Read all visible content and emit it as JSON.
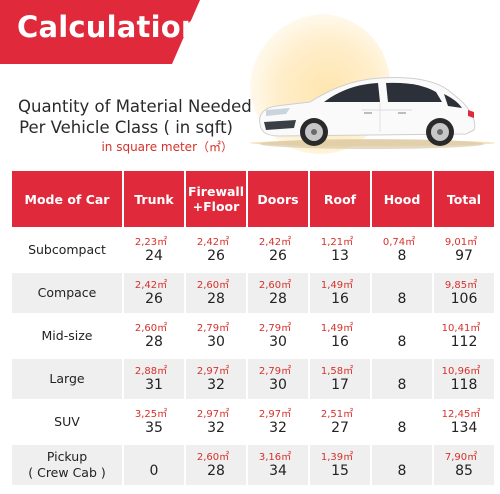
{
  "banner": {
    "title": "Calculation"
  },
  "heading": {
    "line1": "Quantity of Material Needed",
    "line2": "Per Vehicle Class ( in sqft)",
    "subtitle": "in square meter（㎡）"
  },
  "colors": {
    "accent": "#e0293b",
    "metric_text": "#d6312b",
    "row_shade": "#efefef"
  },
  "table": {
    "headers": [
      "Mode of Car",
      "Trunk",
      "Firewall\n+Floor",
      "Doors",
      "Roof",
      "Hood",
      "Total"
    ],
    "rows": [
      {
        "label": "Subcompact",
        "cells": [
          {
            "m2": "2,23㎡",
            "sqft": "24"
          },
          {
            "m2": "2,42㎡",
            "sqft": "26"
          },
          {
            "m2": "2,42㎡",
            "sqft": "26"
          },
          {
            "m2": "1,21㎡",
            "sqft": "13"
          },
          {
            "m2": "0,74㎡",
            "sqft": "8"
          },
          {
            "m2": "9,01㎡",
            "sqft": "97"
          }
        ]
      },
      {
        "label": "Compace",
        "cells": [
          {
            "m2": "2,42㎡",
            "sqft": "26"
          },
          {
            "m2": "2,60㎡",
            "sqft": "28"
          },
          {
            "m2": "2,60㎡",
            "sqft": "28"
          },
          {
            "m2": "1,49㎡",
            "sqft": "16"
          },
          {
            "m2": "",
            "sqft": "8"
          },
          {
            "m2": "9,85㎡",
            "sqft": "106"
          }
        ]
      },
      {
        "label": "Mid-size",
        "cells": [
          {
            "m2": "2,60㎡",
            "sqft": "28"
          },
          {
            "m2": "2,79㎡",
            "sqft": "30"
          },
          {
            "m2": "2,79㎡",
            "sqft": "30"
          },
          {
            "m2": "1,49㎡",
            "sqft": "16"
          },
          {
            "m2": "",
            "sqft": "8"
          },
          {
            "m2": "10,41㎡",
            "sqft": "112"
          }
        ]
      },
      {
        "label": "Large",
        "cells": [
          {
            "m2": "2,88㎡",
            "sqft": "31"
          },
          {
            "m2": "2,97㎡",
            "sqft": "32"
          },
          {
            "m2": "2,79㎡",
            "sqft": "30"
          },
          {
            "m2": "1,58㎡",
            "sqft": "17"
          },
          {
            "m2": "",
            "sqft": "8"
          },
          {
            "m2": "10,96㎡",
            "sqft": "118"
          }
        ]
      },
      {
        "label": "SUV",
        "cells": [
          {
            "m2": "3,25㎡",
            "sqft": "35"
          },
          {
            "m2": "2,97㎡",
            "sqft": "32"
          },
          {
            "m2": "2,97㎡",
            "sqft": "32"
          },
          {
            "m2": "2,51㎡",
            "sqft": "27"
          },
          {
            "m2": "",
            "sqft": "8"
          },
          {
            "m2": "12,45㎡",
            "sqft": "134"
          }
        ]
      },
      {
        "label": "Pickup\n( Crew Cab )",
        "cells": [
          {
            "m2": "",
            "sqft": "0"
          },
          {
            "m2": "2,60㎡",
            "sqft": "28"
          },
          {
            "m2": "3,16㎡",
            "sqft": "34"
          },
          {
            "m2": "1,39㎡",
            "sqft": "15"
          },
          {
            "m2": "",
            "sqft": "8"
          },
          {
            "m2": "7,90㎡",
            "sqft": "85"
          }
        ]
      }
    ]
  }
}
